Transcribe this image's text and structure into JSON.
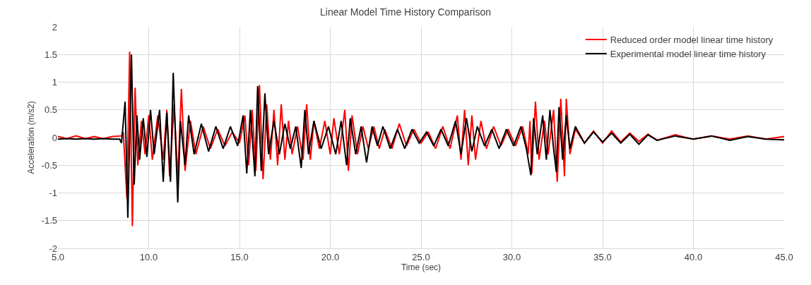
{
  "chart_data": {
    "type": "line",
    "title": "Linear Model Time History Comparison",
    "xlabel": "Time (sec)",
    "ylabel": "Acceleration (m/s2)",
    "xlim": [
      5,
      45
    ],
    "xticks": [
      {
        "value": 5,
        "label": "5.0"
      },
      {
        "value": 10,
        "label": "10.0"
      },
      {
        "value": 15,
        "label": "15.0"
      },
      {
        "value": 20,
        "label": "20.0"
      },
      {
        "value": 25,
        "label": "25.0"
      },
      {
        "value": 30,
        "label": "30.0"
      },
      {
        "value": 35,
        "label": "35.0"
      },
      {
        "value": 40,
        "label": "40.0"
      },
      {
        "value": 45,
        "label": "45.0"
      }
    ],
    "ylim": [
      -2,
      2
    ],
    "yticks": [
      -2,
      -1.5,
      -1,
      -0.5,
      0,
      0.5,
      1,
      1.5,
      2
    ],
    "grid": true,
    "legend": "top right",
    "marker": "none",
    "line_style": "solid",
    "series": [
      {
        "name": "Reduced order model linear time history",
        "color": "#ff0000",
        "x": [
          5,
          5.5,
          6,
          6.5,
          7,
          7.5,
          8,
          8.5,
          8.6,
          8.8,
          8.95,
          9.1,
          9.25,
          9.4,
          9.6,
          9.8,
          10,
          10.2,
          10.5,
          10.8,
          11,
          11.15,
          11.4,
          11.6,
          11.8,
          12,
          12.3,
          12.6,
          13,
          13.4,
          13.8,
          14.2,
          14.6,
          15,
          15.3,
          15.5,
          15.7,
          15.9,
          16.1,
          16.3,
          16.5,
          16.7,
          16.9,
          17.1,
          17.3,
          17.5,
          17.7,
          17.9,
          18.2,
          18.5,
          18.7,
          18.9,
          19.1,
          19.4,
          19.7,
          20,
          20.2,
          20.5,
          20.8,
          21,
          21.2,
          21.5,
          21.8,
          22.1,
          22.4,
          22.7,
          23,
          23.4,
          23.8,
          24.2,
          24.6,
          25,
          25.4,
          25.8,
          26.2,
          26.6,
          27,
          27.2,
          27.4,
          27.6,
          27.8,
          28,
          28.3,
          28.6,
          29,
          29.4,
          29.8,
          30.2,
          30.6,
          30.9,
          31,
          31.1,
          31.3,
          31.5,
          31.8,
          32,
          32.3,
          32.5,
          32.7,
          32.9,
          33,
          33.2,
          33.5,
          34,
          34.5,
          35,
          35.5,
          36,
          36.5,
          37,
          37.5,
          38,
          39,
          40,
          41,
          42,
          43,
          44,
          45
        ],
        "values": [
          0.02,
          -0.02,
          0.03,
          -0.02,
          0.02,
          -0.02,
          0.02,
          0.03,
          0.1,
          -1.1,
          1.55,
          -1.6,
          0.9,
          -0.5,
          0.3,
          -0.3,
          0.4,
          -0.4,
          0.4,
          -0.4,
          0.5,
          -0.7,
          0.6,
          -0.75,
          0.88,
          -0.6,
          0.3,
          -0.3,
          0.2,
          -0.2,
          0.15,
          -0.15,
          0.1,
          -0.1,
          0.4,
          -0.5,
          0.5,
          -0.6,
          0.95,
          -0.75,
          0.6,
          -0.4,
          0.5,
          -0.5,
          0.6,
          -0.4,
          0.3,
          -0.3,
          0.2,
          -0.4,
          0.6,
          -0.4,
          0.3,
          -0.2,
          0.3,
          -0.3,
          0.35,
          -0.3,
          0.5,
          -0.6,
          0.4,
          -0.3,
          0.2,
          -0.2,
          0.2,
          -0.2,
          0.15,
          -0.2,
          0.25,
          -0.15,
          0.15,
          -0.1,
          0.1,
          -0.2,
          0.2,
          -0.2,
          0.4,
          -0.4,
          0.5,
          -0.5,
          0.4,
          -0.4,
          0.3,
          -0.2,
          0.2,
          -0.15,
          0.15,
          -0.15,
          0.2,
          -0.3,
          0.3,
          -0.65,
          0.65,
          -0.4,
          0.3,
          -0.3,
          0.5,
          -0.8,
          0.7,
          -0.7,
          0.7,
          -0.3,
          0.15,
          -0.1,
          0.12,
          -0.1,
          0.12,
          -0.08,
          0.08,
          -0.07,
          0.06,
          -0.05,
          0.05,
          -0.03,
          0.03,
          -0.03,
          0.03,
          -0.03,
          0.02
        ]
      },
      {
        "name": "Experimental model linear time history",
        "color": "#000000",
        "x": [
          5,
          5.5,
          6,
          6.5,
          7,
          7.5,
          8,
          8.4,
          8.5,
          8.7,
          8.85,
          9.05,
          9.2,
          9.35,
          9.5,
          9.7,
          9.9,
          10.1,
          10.3,
          10.6,
          10.8,
          11,
          11.2,
          11.35,
          11.6,
          11.75,
          12,
          12.2,
          12.5,
          12.9,
          13.3,
          13.7,
          14.1,
          14.5,
          14.9,
          15.2,
          15.4,
          15.6,
          15.85,
          16,
          16.2,
          16.4,
          16.6,
          16.9,
          17.2,
          17.5,
          17.8,
          18.1,
          18.4,
          18.6,
          18.8,
          19.1,
          19.5,
          19.9,
          20.3,
          20.6,
          20.9,
          21.1,
          21.4,
          21.7,
          22,
          22.3,
          22.6,
          22.9,
          23.3,
          23.7,
          24.1,
          24.5,
          24.9,
          25.3,
          25.7,
          26.1,
          26.5,
          26.9,
          27.2,
          27.5,
          27.8,
          28.1,
          28.5,
          28.9,
          29.3,
          29.7,
          30.1,
          30.5,
          30.8,
          31.05,
          31.2,
          31.4,
          31.7,
          31.9,
          32.1,
          32.3,
          32.45,
          32.6,
          32.8,
          33,
          33.2,
          33.5,
          34,
          34.5,
          35,
          35.5,
          36,
          36.5,
          37,
          37.5,
          38,
          39,
          40,
          41,
          42,
          43,
          44,
          45
        ],
        "values": [
          -0.03,
          -0.02,
          -0.03,
          -0.02,
          -0.03,
          -0.02,
          -0.03,
          -0.03,
          -0.1,
          0.65,
          -1.45,
          1.5,
          -0.85,
          0.4,
          -0.4,
          0.35,
          -0.35,
          0.5,
          -0.3,
          0.5,
          -0.8,
          0.45,
          -0.8,
          1.17,
          -1.17,
          0.3,
          -0.5,
          0.4,
          -0.3,
          0.25,
          -0.25,
          0.2,
          -0.2,
          0.2,
          -0.15,
          0.4,
          -0.65,
          0.5,
          -0.7,
          0.93,
          -0.6,
          0.8,
          -0.3,
          0.3,
          -0.3,
          0.25,
          -0.2,
          0.2,
          -0.55,
          0.5,
          -0.3,
          0.3,
          -0.2,
          0.2,
          -0.3,
          0.3,
          -0.5,
          0.35,
          -0.3,
          0.2,
          -0.45,
          0.2,
          -0.15,
          0.2,
          -0.2,
          0.15,
          -0.2,
          0.15,
          -0.1,
          0.1,
          -0.15,
          0.15,
          -0.15,
          0.3,
          -0.3,
          0.35,
          -0.25,
          0.2,
          -0.15,
          0.15,
          -0.2,
          0.15,
          -0.15,
          0.2,
          -0.2,
          -0.68,
          0.35,
          -0.3,
          0.4,
          -0.4,
          0.5,
          -0.2,
          -0.62,
          0.55,
          -0.4,
          0.4,
          -0.2,
          0.2,
          -0.1,
          0.1,
          -0.08,
          0.08,
          -0.1,
          0.06,
          -0.12,
          0.05,
          -0.05,
          0.03,
          -0.03,
          0.03,
          -0.05,
          0.02,
          -0.03,
          -0.04
        ]
      }
    ]
  }
}
